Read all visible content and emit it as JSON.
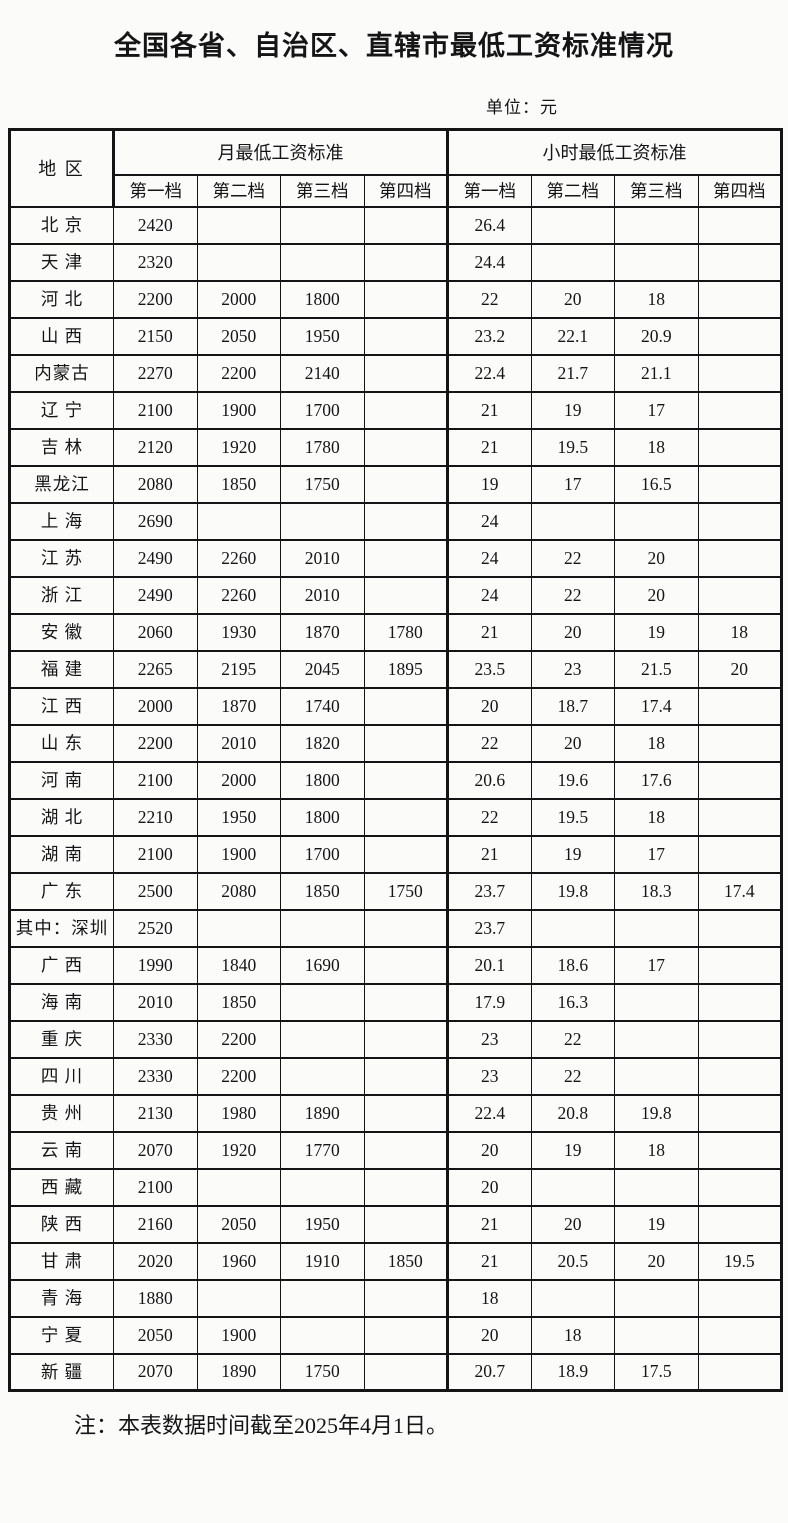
{
  "page": {
    "title": "全国各省、自治区、直辖市最低工资标准情况",
    "unit_label": "单位：元",
    "note": "注：本表数据时间截至2025年4月1日。"
  },
  "colors": {
    "text": "#151515",
    "border": "#141414",
    "background": "#fbfbfa"
  },
  "table": {
    "region_header": "地 区",
    "month_header": "月最低工资标准",
    "hour_header": "小时最低工资标准",
    "tier_headers": [
      "第一档",
      "第二档",
      "第三档",
      "第四档"
    ],
    "rows": [
      {
        "region": "北 京",
        "month": [
          "2420",
          "",
          "",
          ""
        ],
        "hour": [
          "26.4",
          "",
          "",
          ""
        ]
      },
      {
        "region": "天 津",
        "month": [
          "2320",
          "",
          "",
          ""
        ],
        "hour": [
          "24.4",
          "",
          "",
          ""
        ]
      },
      {
        "region": "河 北",
        "month": [
          "2200",
          "2000",
          "1800",
          ""
        ],
        "hour": [
          "22",
          "20",
          "18",
          ""
        ]
      },
      {
        "region": "山 西",
        "month": [
          "2150",
          "2050",
          "1950",
          ""
        ],
        "hour": [
          "23.2",
          "22.1",
          "20.9",
          ""
        ]
      },
      {
        "region": "内蒙古",
        "month": [
          "2270",
          "2200",
          "2140",
          ""
        ],
        "hour": [
          "22.4",
          "21.7",
          "21.1",
          ""
        ]
      },
      {
        "region": "辽 宁",
        "month": [
          "2100",
          "1900",
          "1700",
          ""
        ],
        "hour": [
          "21",
          "19",
          "17",
          ""
        ]
      },
      {
        "region": "吉 林",
        "month": [
          "2120",
          "1920",
          "1780",
          ""
        ],
        "hour": [
          "21",
          "19.5",
          "18",
          ""
        ]
      },
      {
        "region": "黑龙江",
        "month": [
          "2080",
          "1850",
          "1750",
          ""
        ],
        "hour": [
          "19",
          "17",
          "16.5",
          ""
        ]
      },
      {
        "region": "上 海",
        "month": [
          "2690",
          "",
          "",
          ""
        ],
        "hour": [
          "24",
          "",
          "",
          ""
        ]
      },
      {
        "region": "江 苏",
        "month": [
          "2490",
          "2260",
          "2010",
          ""
        ],
        "hour": [
          "24",
          "22",
          "20",
          ""
        ]
      },
      {
        "region": "浙 江",
        "month": [
          "2490",
          "2260",
          "2010",
          ""
        ],
        "hour": [
          "24",
          "22",
          "20",
          ""
        ]
      },
      {
        "region": "安 徽",
        "month": [
          "2060",
          "1930",
          "1870",
          "1780"
        ],
        "hour": [
          "21",
          "20",
          "19",
          "18"
        ]
      },
      {
        "region": "福 建",
        "month": [
          "2265",
          "2195",
          "2045",
          "1895"
        ],
        "hour": [
          "23.5",
          "23",
          "21.5",
          "20"
        ]
      },
      {
        "region": "江 西",
        "month": [
          "2000",
          "1870",
          "1740",
          ""
        ],
        "hour": [
          "20",
          "18.7",
          "17.4",
          ""
        ]
      },
      {
        "region": "山 东",
        "month": [
          "2200",
          "2010",
          "1820",
          ""
        ],
        "hour": [
          "22",
          "20",
          "18",
          ""
        ]
      },
      {
        "region": "河 南",
        "month": [
          "2100",
          "2000",
          "1800",
          ""
        ],
        "hour": [
          "20.6",
          "19.6",
          "17.6",
          ""
        ]
      },
      {
        "region": "湖 北",
        "month": [
          "2210",
          "1950",
          "1800",
          ""
        ],
        "hour": [
          "22",
          "19.5",
          "18",
          ""
        ]
      },
      {
        "region": "湖 南",
        "month": [
          "2100",
          "1900",
          "1700",
          ""
        ],
        "hour": [
          "21",
          "19",
          "17",
          ""
        ]
      },
      {
        "region": "广 东",
        "month": [
          "2500",
          "2080",
          "1850",
          "1750"
        ],
        "hour": [
          "23.7",
          "19.8",
          "18.3",
          "17.4"
        ]
      },
      {
        "region": "其中：深圳",
        "month": [
          "2520",
          "",
          "",
          ""
        ],
        "hour": [
          "23.7",
          "",
          "",
          ""
        ]
      },
      {
        "region": "广 西",
        "month": [
          "1990",
          "1840",
          "1690",
          ""
        ],
        "hour": [
          "20.1",
          "18.6",
          "17",
          ""
        ]
      },
      {
        "region": "海 南",
        "month": [
          "2010",
          "1850",
          "",
          ""
        ],
        "hour": [
          "17.9",
          "16.3",
          "",
          ""
        ]
      },
      {
        "region": "重 庆",
        "month": [
          "2330",
          "2200",
          "",
          ""
        ],
        "hour": [
          "23",
          "22",
          "",
          ""
        ]
      },
      {
        "region": "四 川",
        "month": [
          "2330",
          "2200",
          "",
          ""
        ],
        "hour": [
          "23",
          "22",
          "",
          ""
        ]
      },
      {
        "region": "贵 州",
        "month": [
          "2130",
          "1980",
          "1890",
          ""
        ],
        "hour": [
          "22.4",
          "20.8",
          "19.8",
          ""
        ]
      },
      {
        "region": "云 南",
        "month": [
          "2070",
          "1920",
          "1770",
          ""
        ],
        "hour": [
          "20",
          "19",
          "18",
          ""
        ]
      },
      {
        "region": "西 藏",
        "month": [
          "2100",
          "",
          "",
          ""
        ],
        "hour": [
          "20",
          "",
          "",
          ""
        ]
      },
      {
        "region": "陕 西",
        "month": [
          "2160",
          "2050",
          "1950",
          ""
        ],
        "hour": [
          "21",
          "20",
          "19",
          ""
        ]
      },
      {
        "region": "甘 肃",
        "month": [
          "2020",
          "1960",
          "1910",
          "1850"
        ],
        "hour": [
          "21",
          "20.5",
          "20",
          "19.5"
        ]
      },
      {
        "region": "青 海",
        "month": [
          "1880",
          "",
          "",
          ""
        ],
        "hour": [
          "18",
          "",
          "",
          ""
        ]
      },
      {
        "region": "宁 夏",
        "month": [
          "2050",
          "1900",
          "",
          ""
        ],
        "hour": [
          "20",
          "18",
          "",
          ""
        ]
      },
      {
        "region": "新 疆",
        "month": [
          "2070",
          "1890",
          "1750",
          ""
        ],
        "hour": [
          "20.7",
          "18.9",
          "17.5",
          ""
        ]
      }
    ]
  }
}
